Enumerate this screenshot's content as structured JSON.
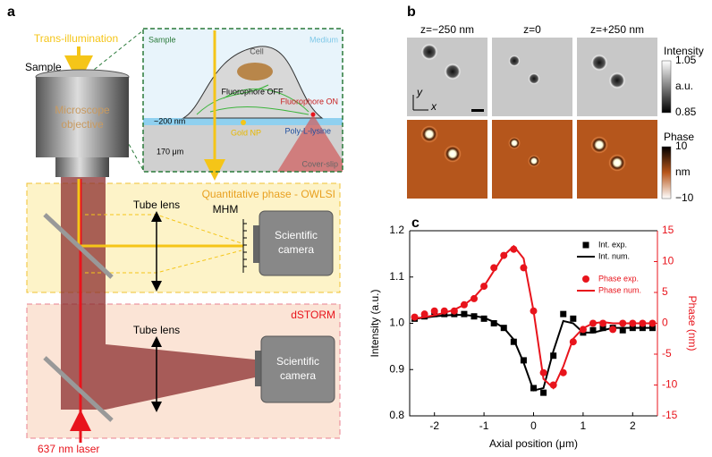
{
  "panel_labels": [
    "a",
    "b",
    "c"
  ],
  "setup": {
    "illumination": "Trans-illumination",
    "sample": "Sample",
    "objective": [
      "Microscope",
      "objective"
    ],
    "inset": {
      "sample": "Sample",
      "medium": "Medium",
      "cell": "Cell",
      "fluor_off": "Fluorophore OFF",
      "fluor_on": "Fluorophore ON",
      "thickness": "~200 nm",
      "gold": "Gold NP",
      "layer": "Poly-L-lysine",
      "glass_thickness": "170 μm",
      "coverslip": "Cover-slip"
    },
    "owlsi": {
      "title": "Quantitative phase - OWLSI",
      "lens": "Tube lens",
      "mask": "MHM",
      "camera": [
        "Scientific",
        "camera"
      ]
    },
    "dstorm": {
      "title": "dSTORM",
      "lens": "Tube lens",
      "camera": [
        "Scientific",
        "camera"
      ]
    },
    "laser": "637 nm laser"
  },
  "images": {
    "columns": [
      "z=−250 nm",
      "z=0",
      "z=+250 nm"
    ],
    "image_axes": [
      "y",
      "x"
    ],
    "colorbars": [
      {
        "title": "Intensity",
        "unit": "a.u.",
        "ticks": [
          1.05,
          0.85
        ]
      },
      {
        "title": "Phase",
        "unit": "nm",
        "ticks": [
          10,
          {
            "value": -10,
            "label": "−10"
          }
        ]
      }
    ]
  },
  "chart_data": {
    "type": "line",
    "x_label": "Axial position (μm)",
    "y_label": "Intensity (a.u.)",
    "y2_label": "Phase (nm)",
    "x": [
      -2.4,
      -2.2,
      -2.0,
      -1.8,
      -1.6,
      -1.4,
      -1.2,
      -1.0,
      -0.8,
      -0.6,
      -0.4,
      -0.2,
      0,
      0.2,
      0.4,
      0.6,
      0.8,
      1.0,
      1.2,
      1.4,
      1.6,
      1.8,
      2.0,
      2.2,
      2.4
    ],
    "series": [
      {
        "name": "Int. exp.",
        "color": "#000000",
        "marker": "square",
        "values": [
          1.01,
          1.015,
          1.02,
          1.02,
          1.02,
          1.02,
          1.015,
          1.01,
          1.0,
          0.99,
          0.96,
          0.92,
          0.86,
          0.85,
          0.93,
          1.02,
          1.01,
          0.98,
          0.985,
          0.99,
          0.99,
          0.985,
          0.99,
          0.99,
          0.99
        ]
      },
      {
        "name": "Int. num.",
        "color": "#000000",
        "marker": "none",
        "values": [
          1.01,
          1.012,
          1.015,
          1.017,
          1.018,
          1.018,
          1.016,
          1.012,
          1.003,
          0.99,
          0.965,
          0.915,
          0.855,
          0.86,
          0.94,
          1.005,
          1.0,
          0.98,
          0.98,
          0.985,
          0.99,
          0.99,
          0.99,
          0.99,
          0.99
        ]
      },
      {
        "name": "Phase exp.",
        "color": "#e8141c",
        "marker": "circle",
        "axis": "y2",
        "values": [
          1,
          1.5,
          2,
          2,
          2,
          3,
          4,
          6,
          9,
          11,
          12,
          9,
          2,
          -8,
          -10,
          -8,
          -3,
          -1,
          0,
          0,
          -1,
          0,
          0,
          0,
          0
        ]
      },
      {
        "name": "Phase num.",
        "color": "#e8141c",
        "marker": "none",
        "axis": "y2",
        "values": [
          0.8,
          1,
          1.3,
          1.7,
          2.2,
          3,
          4.2,
          6,
          8.5,
          11,
          12.5,
          10.5,
          2,
          -9,
          -10.5,
          -7,
          -2.5,
          -0.8,
          0,
          0.2,
          0,
          0,
          0,
          0,
          0
        ]
      }
    ],
    "xlim": [
      -2.5,
      2.5
    ],
    "xticks": [
      -2,
      -1,
      0,
      1,
      2
    ],
    "ylim": [
      0.8,
      1.2
    ],
    "yticks": [
      0.8,
      0.9,
      {
        "value": 1,
        "label": "1.0"
      },
      1.1,
      1.2
    ],
    "y2lim": [
      -15,
      15
    ],
    "y2ticks": [
      -15,
      -10,
      -5,
      0,
      5,
      10,
      15
    ]
  }
}
